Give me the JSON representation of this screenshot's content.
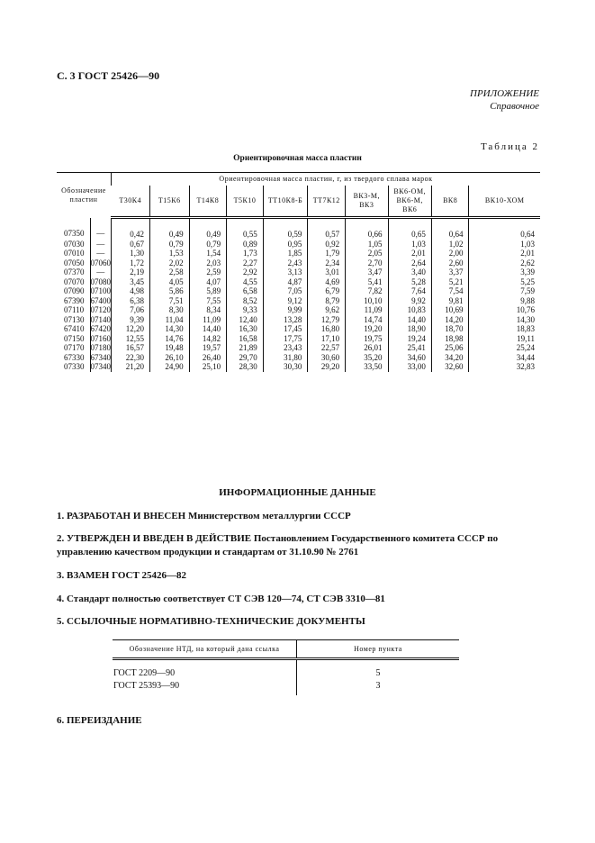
{
  "header": "С. 3 ГОСТ 25426—90",
  "appendix": {
    "title": "ПРИЛОЖЕНИЕ",
    "subtitle": "Справочное"
  },
  "table2": {
    "label": "Таблица 2",
    "title": "Ориентировочная масса пластин",
    "designation_header": "Обозначение пластин",
    "mass_header": "Ориентировочная масса пластин, г, из твердого сплава марок",
    "grades": [
      "Т30К4",
      "Т15К6",
      "Т14К8",
      "Т5К10",
      "ТТ10К8-Б",
      "ТТ7К12",
      "ВК3-М, ВК3",
      "ВК6-ОМ, ВК6-М, ВК6",
      "ВК8",
      "ВК10-ХОМ"
    ],
    "rows": [
      [
        "07350",
        "—",
        "0,42",
        "0,49",
        "0,49",
        "0,55",
        "0,59",
        "0,57",
        "0,66",
        "0,65",
        "0,64",
        "0,64"
      ],
      [
        "07030",
        "—",
        "0,67",
        "0,79",
        "0,79",
        "0,89",
        "0,95",
        "0,92",
        "1,05",
        "1,03",
        "1,02",
        "1,03"
      ],
      [
        "07010",
        "—",
        "1,30",
        "1,53",
        "1,54",
        "1,73",
        "1,85",
        "1,79",
        "2,05",
        "2,01",
        "2,00",
        "2,01"
      ],
      [
        "07050",
        "07060",
        "1,72",
        "2,02",
        "2,03",
        "2,27",
        "2,43",
        "2,34",
        "2,70",
        "2,64",
        "2,60",
        "2,62"
      ],
      [
        "07370",
        "—",
        "2,19",
        "2,58",
        "2,59",
        "2,92",
        "3,13",
        "3,01",
        "3,47",
        "3,40",
        "3,37",
        "3,39"
      ],
      [
        "07070",
        "07080",
        "3,45",
        "4,05",
        "4,07",
        "4,55",
        "4,87",
        "4,69",
        "5,41",
        "5,28",
        "5,21",
        "5,25"
      ],
      [
        "07090",
        "07100",
        "4,98",
        "5,86",
        "5,89",
        "6,58",
        "7,05",
        "6,79",
        "7,82",
        "7,64",
        "7,54",
        "7,59"
      ],
      [
        "67390",
        "67400",
        "6,38",
        "7,51",
        "7,55",
        "8,52",
        "9,12",
        "8,79",
        "10,10",
        "9,92",
        "9,81",
        "9,88"
      ],
      [
        "07110",
        "07120",
        "7,06",
        "8,30",
        "8,34",
        "9,33",
        "9,99",
        "9,62",
        "11,09",
        "10,83",
        "10,69",
        "10,76"
      ],
      [
        "07130",
        "07140",
        "9,39",
        "11,04",
        "11,09",
        "12,40",
        "13,28",
        "12,79",
        "14,74",
        "14,40",
        "14,20",
        "14,30"
      ],
      [
        "67410",
        "67420",
        "12,20",
        "14,30",
        "14,40",
        "16,30",
        "17,45",
        "16,80",
        "19,20",
        "18,90",
        "18,70",
        "18,83"
      ],
      [
        "07150",
        "07160",
        "12,55",
        "14,76",
        "14,82",
        "16,58",
        "17,75",
        "17,10",
        "19,75",
        "19,24",
        "18,98",
        "19,11"
      ],
      [
        "07170",
        "07180",
        "16,57",
        "19,48",
        "19,57",
        "21,89",
        "23,43",
        "22,57",
        "26,01",
        "25,41",
        "25,06",
        "25,24"
      ],
      [
        "67330",
        "67340",
        "22,30",
        "26,10",
        "26,40",
        "29,70",
        "31,80",
        "30,60",
        "35,20",
        "34,60",
        "34,20",
        "34,44"
      ],
      [
        "07330",
        "07340",
        "21,20",
        "24,90",
        "25,10",
        "28,30",
        "30,30",
        "29,20",
        "33,50",
        "33,00",
        "32,60",
        "32,83"
      ]
    ]
  },
  "info": {
    "title": "ИНФОРМАЦИОННЫЕ ДАННЫЕ",
    "items": [
      {
        "bold": "1. РАЗРАБОТАН И ВНЕСЕН",
        "text": " Министерством металлургии СССР"
      },
      {
        "bold": "2. УТВЕРЖДЕН И ВВЕДЕН В ДЕЙСТВИЕ",
        "text": " Постановлением Государственного комитета СССР по управлению качеством продукции и стандартам от 31.10.90 № 2761"
      },
      {
        "bold": "3. ВЗАМЕН ГОСТ 25426—82",
        "text": ""
      },
      {
        "bold": "4.",
        "text": " Стандарт полностью соответствует СТ СЭВ 120—74, СТ СЭВ 3310—81"
      },
      {
        "bold": "5. ССЫЛОЧНЫЕ НОРМАТИВНО-ТЕХНИЧЕСКИЕ ДОКУМЕНТЫ",
        "text": ""
      }
    ],
    "ntd_table": {
      "headers": [
        "Обозначение НТД, на который дана ссылка",
        "Номер пункта"
      ],
      "rows": [
        [
          "ГОСТ 2209—90",
          "5"
        ],
        [
          "ГОСТ 25393—90",
          "3"
        ]
      ]
    },
    "last_item": "6. ПЕРЕИЗДАНИЕ"
  }
}
